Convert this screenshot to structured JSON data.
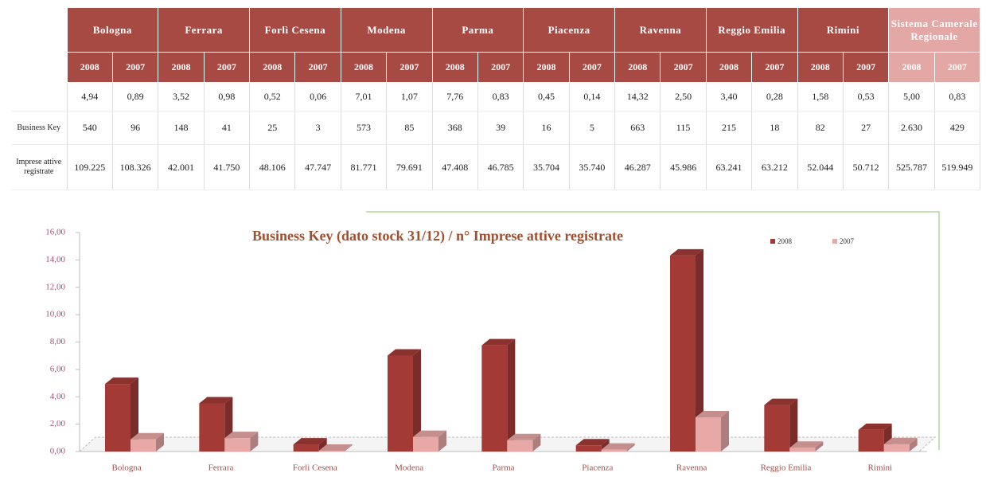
{
  "table": {
    "header": [
      "Bologna",
      "Ferrara",
      "Forlì Cesena",
      "Modena",
      "Parma",
      "Piacenza",
      "Ravenna",
      "Reggio Emilia",
      "Rimini",
      "Sistema Camerale Regionale"
    ],
    "years": [
      "2008",
      "2007",
      "2008",
      "2007",
      "2008",
      "2007",
      "2008",
      "2007",
      "2008",
      "2007",
      "2008",
      "2007",
      "2008",
      "2007",
      "2008",
      "2007",
      "2008",
      "2007",
      "2008",
      "2007"
    ],
    "rows": [
      {
        "cells": [
          "4,94",
          "0,89",
          "3,52",
          "0,98",
          "0,52",
          "0,06",
          "7,01",
          "1,07",
          "7,76",
          "0,83",
          "0,45",
          "0,14",
          "14,32",
          "2,50",
          "3,40",
          "0,28",
          "1,58",
          "0,53",
          "5,00",
          "0,83"
        ]
      },
      {
        "label": "Business Key",
        "cells": [
          "540",
          "96",
          "148",
          "41",
          "25",
          "3",
          "573",
          "85",
          "368",
          "39",
          "16",
          "5",
          "663",
          "115",
          "215",
          "18",
          "82",
          "27",
          "2.630",
          "429"
        ]
      },
      {
        "label": "Imprese attive registrate",
        "cells": [
          "109.225",
          "108.326",
          "42.001",
          "41.750",
          "48.106",
          "47.747",
          "81.771",
          "79.691",
          "47.408",
          "46.785",
          "35.704",
          "35.740",
          "46.287",
          "45.986",
          "63.241",
          "63.212",
          "52.044",
          "50.712",
          "525.787",
          "519.949"
        ]
      }
    ]
  },
  "chart_data": {
    "type": "bar",
    "title": "Business Key (dato stock 31/12)  / n° Imprese attive registrate",
    "categories": [
      "Bologna",
      "Ferrara",
      "Forlì Cesena",
      "Modena",
      "Parma",
      "Piacenza",
      "Ravenna",
      "Reggio Emilia",
      "Rimini"
    ],
    "series": [
      {
        "name": "2008",
        "color": "#a33a36",
        "values": [
          4.94,
          3.52,
          0.52,
          7.01,
          7.76,
          0.45,
          14.32,
          3.4,
          1.58
        ]
      },
      {
        "name": "2007",
        "color": "#e8a8a6",
        "values": [
          0.89,
          0.98,
          0.06,
          1.07,
          0.83,
          0.14,
          2.5,
          0.28,
          0.53
        ]
      }
    ],
    "ylim": [
      0,
      16
    ],
    "yticks": [
      {
        "value": 0,
        "label": "0,00"
      },
      {
        "value": 2,
        "label": "2,00"
      },
      {
        "value": 4,
        "label": "4,00"
      },
      {
        "value": 6,
        "label": "6,00"
      },
      {
        "value": 8,
        "label": "8,00"
      },
      {
        "value": 10,
        "label": "10,00"
      },
      {
        "value": 12,
        "label": "12,00"
      },
      {
        "value": 14,
        "label": "14,00"
      },
      {
        "value": 16,
        "label": "16,00"
      }
    ],
    "legend": "top-right"
  }
}
